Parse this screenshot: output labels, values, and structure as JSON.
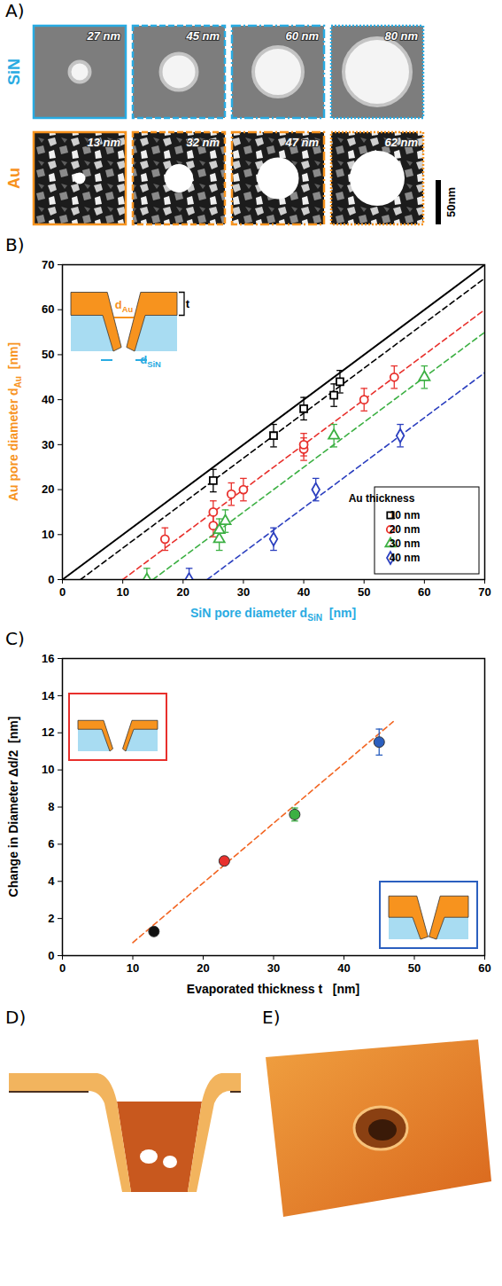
{
  "panels": {
    "A": {
      "letter": "A)",
      "rows": [
        {
          "label": "SiN",
          "color": "#29abe2",
          "images": [
            {
              "label": "27 nm",
              "diameter": 27
            },
            {
              "label": "45 nm",
              "diameter": 45
            },
            {
              "label": "60 nm",
              "diameter": 60
            },
            {
              "label": "80 nm",
              "diameter": 80
            }
          ]
        },
        {
          "label": "Au",
          "color": "#f7931e",
          "images": [
            {
              "label": "13 nm",
              "diameter": 13
            },
            {
              "label": "32 nm",
              "diameter": 32
            },
            {
              "label": "47 nm",
              "diameter": 47
            },
            {
              "label": "62 nm",
              "diameter": 62
            }
          ]
        }
      ],
      "scale_bar": {
        "label": "50nm",
        "length": 50
      }
    },
    "D": {
      "letter": "D)"
    },
    "E": {
      "letter": "E)"
    }
  },
  "chart_data": [
    {
      "letter": "B)",
      "type": "scatter",
      "x_label": {
        "color": "#29abe2",
        "runs": [
          {
            "text": "SiN pore diameter d"
          },
          {
            "text": "SiN",
            "subscript": true
          },
          {
            "text": "  [nm]"
          }
        ]
      },
      "y_label": {
        "color": "#f7931e",
        "runs": [
          {
            "text": "Au pore diameter d"
          },
          {
            "text": "Au",
            "subscript": true
          },
          {
            "text": "  [nm]"
          }
        ]
      },
      "xlim": [
        0,
        70
      ],
      "xticks": [
        0,
        10,
        20,
        30,
        40,
        50,
        60,
        70
      ],
      "ylim": [
        0,
        70
      ],
      "yticks": [
        0,
        10,
        20,
        30,
        40,
        50,
        60,
        70
      ],
      "legend": "lower right",
      "legend_title": "Au thickness",
      "reference_line": {
        "x": [
          0,
          70
        ],
        "y": [
          0,
          70
        ],
        "color": "#000000",
        "line_style": "solid"
      },
      "inset_labels": [
        {
          "color": "#f7931e",
          "runs": [
            {
              "text": "d"
            },
            {
              "text": "Au",
              "subscript": true
            }
          ]
        },
        {
          "color": "#000000",
          "runs": [
            {
              "text": "t"
            }
          ]
        },
        {
          "color": "#29abe2",
          "runs": [
            {
              "text": "d"
            },
            {
              "text": "SiN",
              "subscript": true
            }
          ]
        }
      ],
      "series": [
        {
          "name": "10 nm",
          "color": "#000000",
          "marker": "square",
          "x": [
            25,
            35,
            40,
            45,
            46
          ],
          "values": [
            22,
            32,
            38,
            41,
            44
          ],
          "errors": [
            2.5,
            2.5,
            2.5,
            2.5,
            2.5
          ],
          "fit": {
            "x": [
              3,
              70
            ],
            "y": [
              0,
              67
            ],
            "line_style": "dashed"
          }
        },
        {
          "name": "20 nm",
          "color": "#e8302c",
          "marker": "circle",
          "x": [
            17,
            25,
            25,
            28,
            30,
            40,
            40,
            50,
            55
          ],
          "values": [
            9,
            15,
            12,
            19,
            20,
            29,
            30,
            40,
            45
          ],
          "errors": [
            2.5,
            2.5,
            2.5,
            2.5,
            2.5,
            2.5,
            2.5,
            2.5,
            2.5
          ],
          "fit": {
            "x": [
              10,
              70
            ],
            "y": [
              0,
              60
            ],
            "line_style": "dashed"
          }
        },
        {
          "name": "30 nm",
          "color": "#3cb043",
          "marker": "triangle",
          "x": [
            14,
            26,
            26,
            27,
            45,
            60
          ],
          "values": [
            0,
            9,
            11,
            13,
            32,
            45
          ],
          "errors": [
            2.5,
            2.5,
            2.5,
            2.5,
            2.5,
            2.5
          ],
          "fit": {
            "x": [
              15,
              70
            ],
            "y": [
              0,
              55
            ],
            "line_style": "dashed"
          }
        },
        {
          "name": "40 nm",
          "color": "#2b3fbf",
          "marker": "diamond",
          "x": [
            21,
            35,
            42,
            56
          ],
          "values": [
            0,
            9,
            20,
            32
          ],
          "errors": [
            2.5,
            2.5,
            2.5,
            2.5
          ],
          "fit": {
            "x": [
              24,
              70
            ],
            "y": [
              0,
              46
            ],
            "line_style": "dashed"
          }
        }
      ]
    },
    {
      "letter": "C)",
      "type": "scatter",
      "x_label": {
        "color": "#000000",
        "runs": [
          {
            "text": "Evaporated thickness t   [nm]"
          }
        ]
      },
      "y_label": {
        "color": "#000000",
        "runs": [
          {
            "text": "Change in Diameter Δd/2  [nm]"
          }
        ]
      },
      "xlim": [
        0,
        60
      ],
      "xticks": [
        0,
        10,
        20,
        30,
        40,
        50,
        60
      ],
      "ylim": [
        0,
        16
      ],
      "yticks": [
        0,
        2,
        4,
        6,
        8,
        10,
        12,
        14,
        16
      ],
      "marker": "circle",
      "x": [
        13,
        23,
        33,
        45
      ],
      "values": [
        1.3,
        5.1,
        7.6,
        11.5
      ],
      "errors": [
        0.2,
        0.2,
        0.35,
        0.7
      ],
      "colors": [
        "#111111",
        "#e8302c",
        "#3cb043",
        "#2b5fbf"
      ],
      "fit": {
        "x": [
          10,
          47
        ],
        "y": [
          0.7,
          12.6
        ],
        "color": "#f26522",
        "line_style": "dashed"
      }
    }
  ]
}
